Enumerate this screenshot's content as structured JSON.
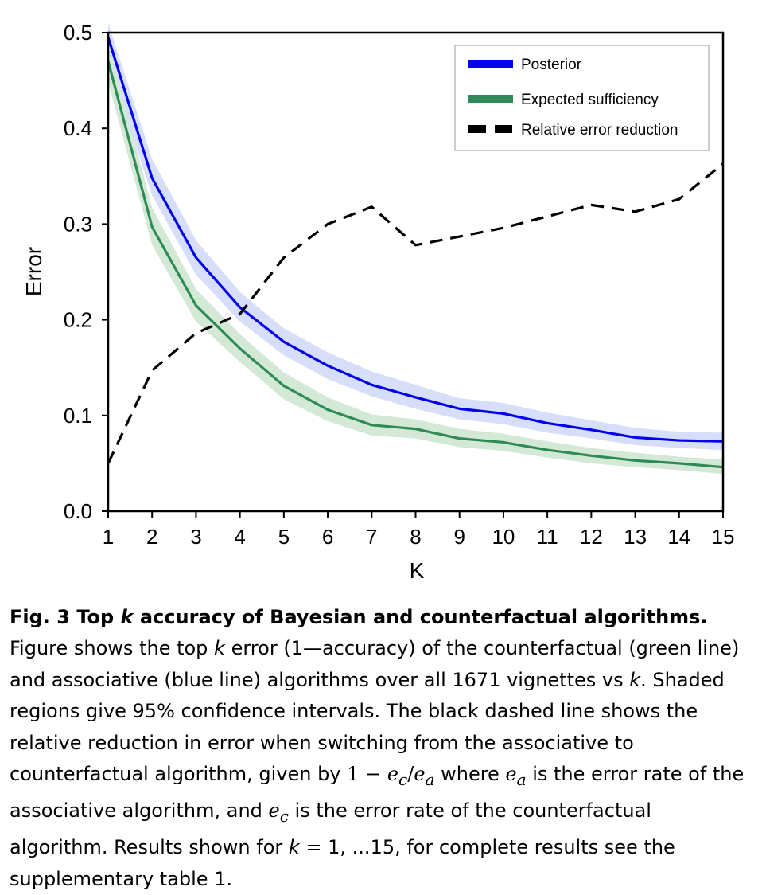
{
  "chart_data": {
    "type": "line",
    "x": [
      1,
      2,
      3,
      4,
      5,
      6,
      7,
      8,
      9,
      10,
      11,
      12,
      13,
      14,
      15
    ],
    "xlabel": "K",
    "ylabel": "Error",
    "xlim": [
      1,
      15
    ],
    "ylim": [
      0.0,
      0.5
    ],
    "xticks": [
      "1",
      "2",
      "3",
      "4",
      "5",
      "6",
      "7",
      "8",
      "9",
      "10",
      "11",
      "12",
      "13",
      "14",
      "15"
    ],
    "yticks": [
      "0.0",
      "0.1",
      "0.2",
      "0.3",
      "0.4",
      "0.5"
    ],
    "grid": false,
    "legend_position": "top-right",
    "series": [
      {
        "name": "Posterior",
        "color": "#0000ee",
        "style": "solid",
        "values": [
          0.495,
          0.348,
          0.265,
          0.213,
          0.177,
          0.152,
          0.132,
          0.119,
          0.107,
          0.102,
          0.092,
          0.085,
          0.077,
          0.074,
          0.073
        ],
        "ci_lower": [
          0.47,
          0.33,
          0.247,
          0.198,
          0.163,
          0.138,
          0.12,
          0.107,
          0.096,
          0.091,
          0.082,
          0.076,
          0.069,
          0.066,
          0.064
        ],
        "ci_upper": [
          0.51,
          0.368,
          0.283,
          0.229,
          0.191,
          0.166,
          0.146,
          0.132,
          0.118,
          0.113,
          0.103,
          0.095,
          0.087,
          0.083,
          0.082
        ],
        "band_color": "#d6defa"
      },
      {
        "name": "Expected sufficiency",
        "color": "#2e8b57",
        "style": "solid",
        "values": [
          0.47,
          0.297,
          0.215,
          0.17,
          0.131,
          0.106,
          0.09,
          0.086,
          0.076,
          0.072,
          0.064,
          0.058,
          0.053,
          0.05,
          0.046
        ],
        "ci_lower": [
          0.448,
          0.278,
          0.198,
          0.156,
          0.117,
          0.094,
          0.079,
          0.076,
          0.067,
          0.063,
          0.056,
          0.05,
          0.046,
          0.043,
          0.039
        ],
        "ci_upper": [
          0.49,
          0.317,
          0.232,
          0.185,
          0.145,
          0.119,
          0.101,
          0.096,
          0.086,
          0.081,
          0.073,
          0.066,
          0.061,
          0.057,
          0.054
        ],
        "band_color": "#d3e9d6"
      },
      {
        "name": "Relative error reduction",
        "color": "#000000",
        "style": "dashed",
        "values": [
          0.05,
          0.147,
          0.186,
          0.206,
          0.265,
          0.3,
          0.318,
          0.278,
          0.287,
          0.296,
          0.308,
          0.32,
          0.313,
          0.326,
          0.363
        ]
      }
    ]
  },
  "caption": {
    "title": "Fig. 3 Top k accuracy of Bayesian and counterfactual algorithms.",
    "title_pre": "Fig. 3 Top ",
    "title_k": "k",
    "title_post": " accuracy of Bayesian and counterfactual algorithms.",
    "p1": " Figure shows the top ",
    "k1": "k",
    "p2": " error (1—accuracy) of the counterfactual (green line) and associative (blue line) algorithms over all 1671 vignettes vs ",
    "k2": "k",
    "p3": ". Shaded regions give 95% confidence intervals. The black dashed line shows the relative reduction in error when switching from the associative to counterfactual algorithm, given by ",
    "formula": "1 − e_c/e_a",
    "f_one": "1 − ",
    "f_e1": "e",
    "f_c1": "c",
    "f_slash": "/",
    "f_e2": "e",
    "f_a1": "a",
    "p4": " where ",
    "f_e3": "e",
    "f_a2": "a",
    "p5": " is the error rate of the associative algorithm, and ",
    "f_e4": "e",
    "f_c2": "c",
    "p6": " is the error rate of the counterfactual algorithm. Results shown for ",
    "k3": "k",
    "p7": " = 1, ...15, for complete results see the supplementary table 1."
  }
}
